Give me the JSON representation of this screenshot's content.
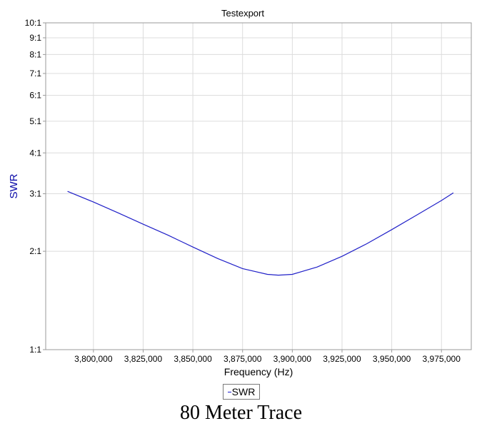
{
  "caption": "80 Meter Trace",
  "chart_data": {
    "type": "line",
    "title": "Testexport",
    "xlabel": "Frequency (Hz)",
    "ylabel": "SWR",
    "y_scale": "log",
    "xlim": [
      3776000,
      3990000
    ],
    "ylim": [
      1,
      10
    ],
    "x_ticks": [
      3800000,
      3825000,
      3850000,
      3875000,
      3900000,
      3925000,
      3950000,
      3975000
    ],
    "x_tick_labels": [
      "3,800,000",
      "3,825,000",
      "3,850,000",
      "3,875,000",
      "3,900,000",
      "3,925,000",
      "3,950,000",
      "3,975,000"
    ],
    "y_ticks": [
      1,
      2,
      3,
      4,
      5,
      6,
      7,
      8,
      9,
      10
    ],
    "y_tick_labels": [
      "1:1",
      "2:1",
      "3:1",
      "4:1",
      "5:1",
      "6:1",
      "7:1",
      "8:1",
      "9:1",
      "10:1"
    ],
    "grid": true,
    "legend_position": "bottom-center",
    "series": [
      {
        "name": "SWR",
        "color": "#2020c8",
        "x": [
          3787000,
          3800000,
          3812500,
          3825000,
          3837500,
          3850000,
          3862500,
          3875000,
          3887500,
          3893000,
          3900000,
          3912500,
          3925000,
          3937500,
          3950000,
          3962500,
          3975000,
          3981000
        ],
        "y": [
          3.05,
          2.83,
          2.62,
          2.42,
          2.24,
          2.06,
          1.9,
          1.77,
          1.7,
          1.69,
          1.7,
          1.79,
          1.93,
          2.11,
          2.33,
          2.58,
          2.86,
          3.02
        ]
      }
    ]
  }
}
